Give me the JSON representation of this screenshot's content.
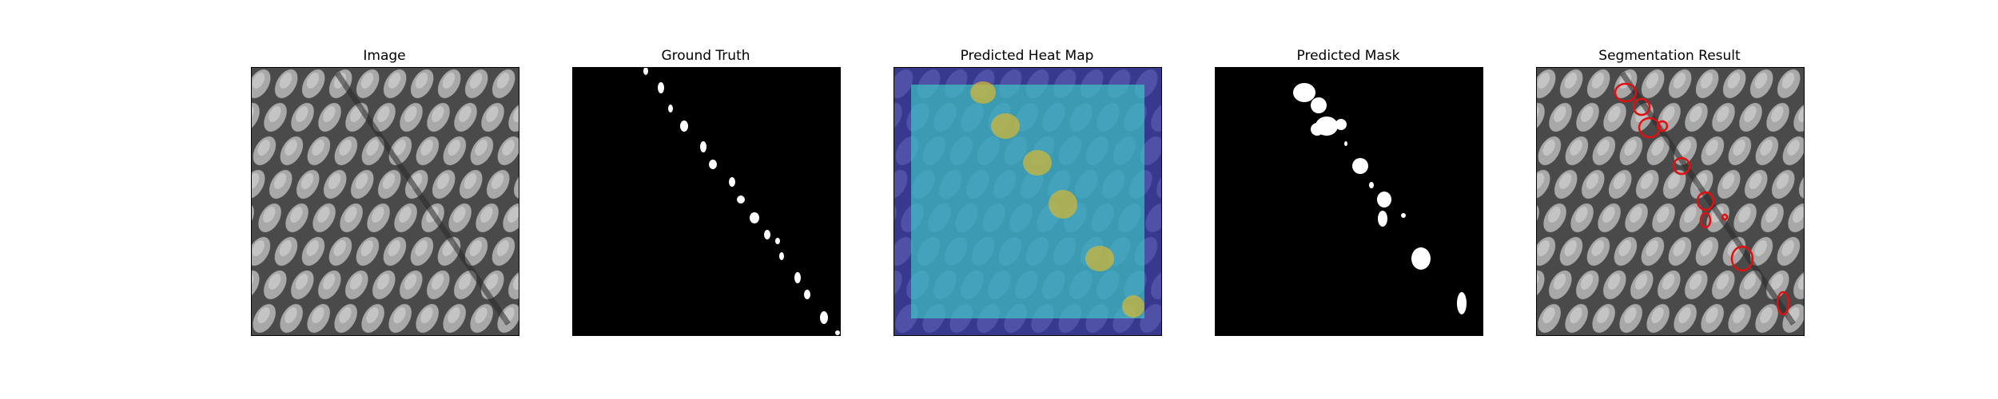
{
  "panels": [
    {
      "id": "image",
      "title": "Image"
    },
    {
      "id": "ground_truth",
      "title": "Ground Truth"
    },
    {
      "id": "heat_map",
      "title": "Predicted Heat Map"
    },
    {
      "id": "mask",
      "title": "Predicted Mask"
    },
    {
      "id": "result",
      "title": "Segmentation Result"
    }
  ],
  "colors": {
    "background": "#ffffff",
    "mask_fg": "#ffffff",
    "mask_bg": "#000000",
    "heat_low": "#3b3fb0",
    "heat_mid": "#3fd0c8",
    "heat_high": "#d8b830",
    "contour": "#e01010"
  }
}
